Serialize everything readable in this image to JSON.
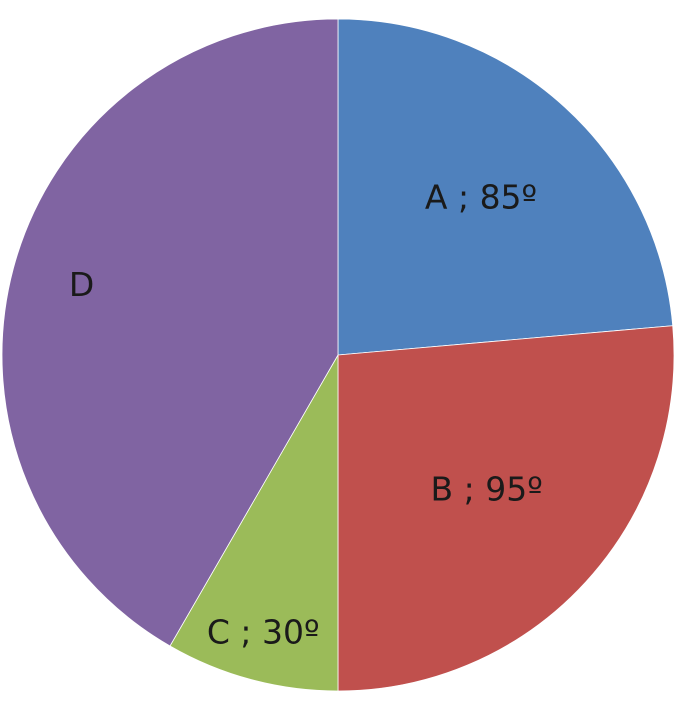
{
  "chart_data": {
    "type": "pie",
    "title": "",
    "start_angle_deg": 0,
    "direction": "clockwise",
    "slices": [
      {
        "name": "A",
        "label": "A ; 85º",
        "value": 85,
        "color": "#4f81bd"
      },
      {
        "name": "B",
        "label": "B ; 95º",
        "value": 95,
        "color": "#c0504d"
      },
      {
        "name": "C",
        "label": "C ; 30º",
        "value": 30,
        "color": "#9bbb59"
      },
      {
        "name": "D",
        "label": "D",
        "value": 150,
        "color": "#8064a2"
      }
    ]
  }
}
